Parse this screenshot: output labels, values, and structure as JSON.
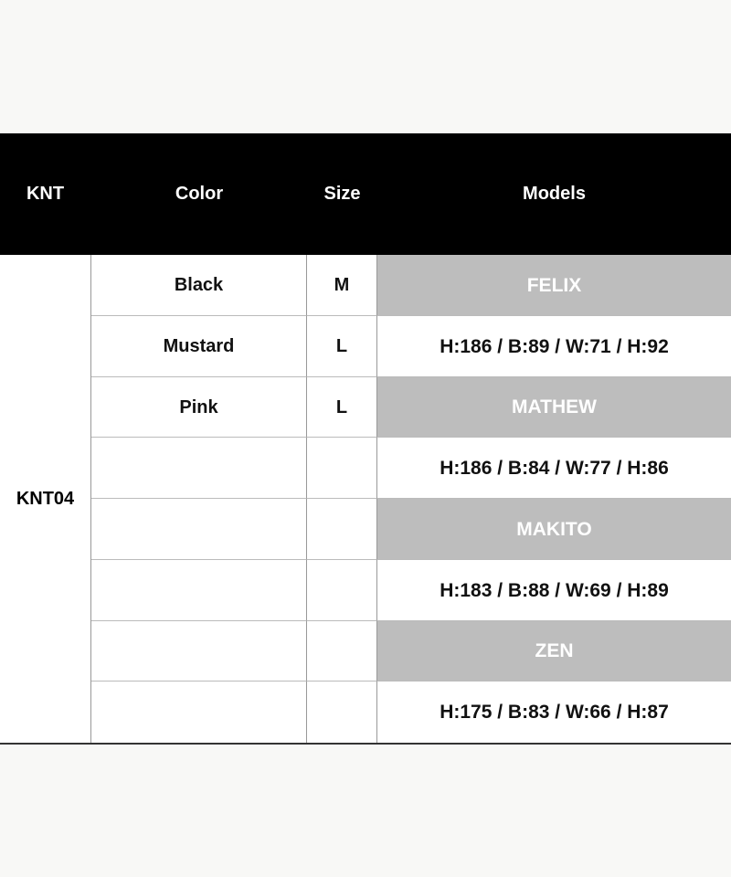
{
  "header": {
    "knt": "KNT",
    "color": "Color",
    "size": "Size",
    "models": "Models"
  },
  "product_code": "KNT04",
  "rows": [
    {
      "color": "Black",
      "size": "M",
      "model": "FELIX",
      "is_name": true
    },
    {
      "color": "Mustard",
      "size": "L",
      "model": "H:186 / B:89 / W:71 / H:92",
      "is_name": false
    },
    {
      "color": "Pink",
      "size": "L",
      "model": "MATHEW",
      "is_name": true
    },
    {
      "color": "",
      "size": "",
      "model": "H:186 / B:84 / W:77 / H:86",
      "is_name": false
    },
    {
      "color": "",
      "size": "",
      "model": "MAKITO",
      "is_name": true
    },
    {
      "color": "",
      "size": "",
      "model": "H:183 / B:88 / W:69 / H:89",
      "is_name": false
    },
    {
      "color": "",
      "size": "",
      "model": "ZEN",
      "is_name": true
    },
    {
      "color": "",
      "size": "",
      "model": "H:175 / B:83 / W:66 / H:87",
      "is_name": false
    }
  ],
  "colors": {
    "header_bg": "#000000",
    "model_name_bg": "#bdbdbd"
  }
}
